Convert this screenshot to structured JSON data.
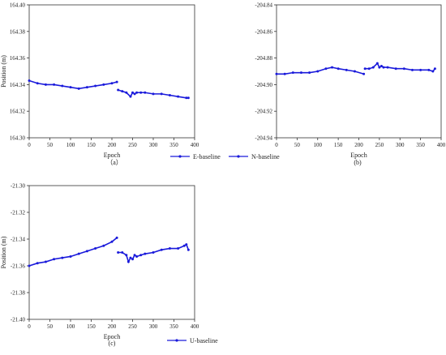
{
  "figure": {
    "legend_ab": [
      "E-baseline",
      "N-baseline"
    ],
    "legend_c": [
      "U-baseline"
    ],
    "colors": {
      "series": "#1a1adb",
      "axis": "#333333",
      "text": "#222222"
    }
  },
  "chart_data": [
    {
      "type": "scatter",
      "panel_label": "（a）",
      "title": "",
      "xlabel": "Epoch",
      "ylabel": "Position (m)",
      "xlim": [
        0,
        400
      ],
      "ylim": [
        164.3,
        164.4
      ],
      "x_ticks": [
        "0",
        "50",
        "100",
        "150",
        "200",
        "250",
        "300",
        "350",
        "400"
      ],
      "y_ticks": [
        "164.30",
        "164.32",
        "164.34",
        "164.36",
        "164.38",
        "164.40"
      ],
      "grid": false,
      "series": [
        {
          "name": "E-baseline",
          "x": [
            0,
            20,
            40,
            60,
            80,
            100,
            120,
            140,
            160,
            180,
            200,
            212,
            215,
            225,
            235,
            245,
            250,
            255,
            260,
            270,
            280,
            300,
            320,
            340,
            360,
            380,
            385
          ],
          "y": [
            164.343,
            164.341,
            164.34,
            164.34,
            164.339,
            164.338,
            164.337,
            164.338,
            164.339,
            164.34,
            164.341,
            164.342,
            164.336,
            164.335,
            164.334,
            164.331,
            164.334,
            164.333,
            164.334,
            164.334,
            164.334,
            164.333,
            164.333,
            164.332,
            164.331,
            164.33,
            164.33
          ]
        }
      ]
    },
    {
      "type": "scatter",
      "panel_label": "(b)",
      "title": "",
      "xlabel": "Epoch",
      "ylabel": "",
      "xlim": [
        0,
        400
      ],
      "ylim": [
        -204.94,
        -204.84
      ],
      "x_ticks": [
        "0",
        "50",
        "100",
        "150",
        "200",
        "250",
        "300",
        "350",
        "400"
      ],
      "y_ticks": [
        "-204.94",
        "-204.92",
        "-204.90",
        "-204.88",
        "-204.86",
        "-204.84"
      ],
      "grid": false,
      "series": [
        {
          "name": "N-baseline",
          "x": [
            0,
            20,
            40,
            60,
            80,
            100,
            120,
            135,
            150,
            170,
            190,
            212,
            215,
            225,
            235,
            245,
            250,
            255,
            260,
            270,
            290,
            310,
            330,
            350,
            370,
            380,
            385
          ],
          "y": [
            -204.892,
            -204.892,
            -204.891,
            -204.891,
            -204.891,
            -204.89,
            -204.888,
            -204.887,
            -204.888,
            -204.889,
            -204.89,
            -204.892,
            -204.888,
            -204.888,
            -204.887,
            -204.884,
            -204.887,
            -204.886,
            -204.887,
            -204.887,
            -204.888,
            -204.888,
            -204.889,
            -204.889,
            -204.889,
            -204.89,
            -204.888
          ]
        }
      ]
    },
    {
      "type": "scatter",
      "panel_label": "(c)",
      "title": "",
      "xlabel": "Epoch",
      "ylabel": "Position (m)",
      "xlim": [
        0,
        400
      ],
      "ylim": [
        -21.4,
        -21.3
      ],
      "x_ticks": [
        "0",
        "50",
        "100",
        "150",
        "200",
        "250",
        "300",
        "350",
        "400"
      ],
      "y_ticks": [
        "-21.40",
        "-21.38",
        "-21.36",
        "-21.34",
        "-21.32",
        "-21.30"
      ],
      "grid": false,
      "series": [
        {
          "name": "U-baseline",
          "x": [
            0,
            20,
            40,
            60,
            80,
            100,
            120,
            140,
            160,
            180,
            200,
            212,
            215,
            225,
            235,
            240,
            245,
            250,
            255,
            260,
            270,
            280,
            300,
            320,
            340,
            360,
            375,
            380,
            385
          ],
          "y": [
            -21.36,
            -21.358,
            -21.357,
            -21.355,
            -21.354,
            -21.353,
            -21.351,
            -21.349,
            -21.347,
            -21.345,
            -21.342,
            -21.339,
            -21.35,
            -21.35,
            -21.352,
            -21.357,
            -21.354,
            -21.355,
            -21.352,
            -21.353,
            -21.352,
            -21.351,
            -21.35,
            -21.348,
            -21.347,
            -21.347,
            -21.345,
            -21.344,
            -21.348
          ]
        }
      ]
    }
  ]
}
